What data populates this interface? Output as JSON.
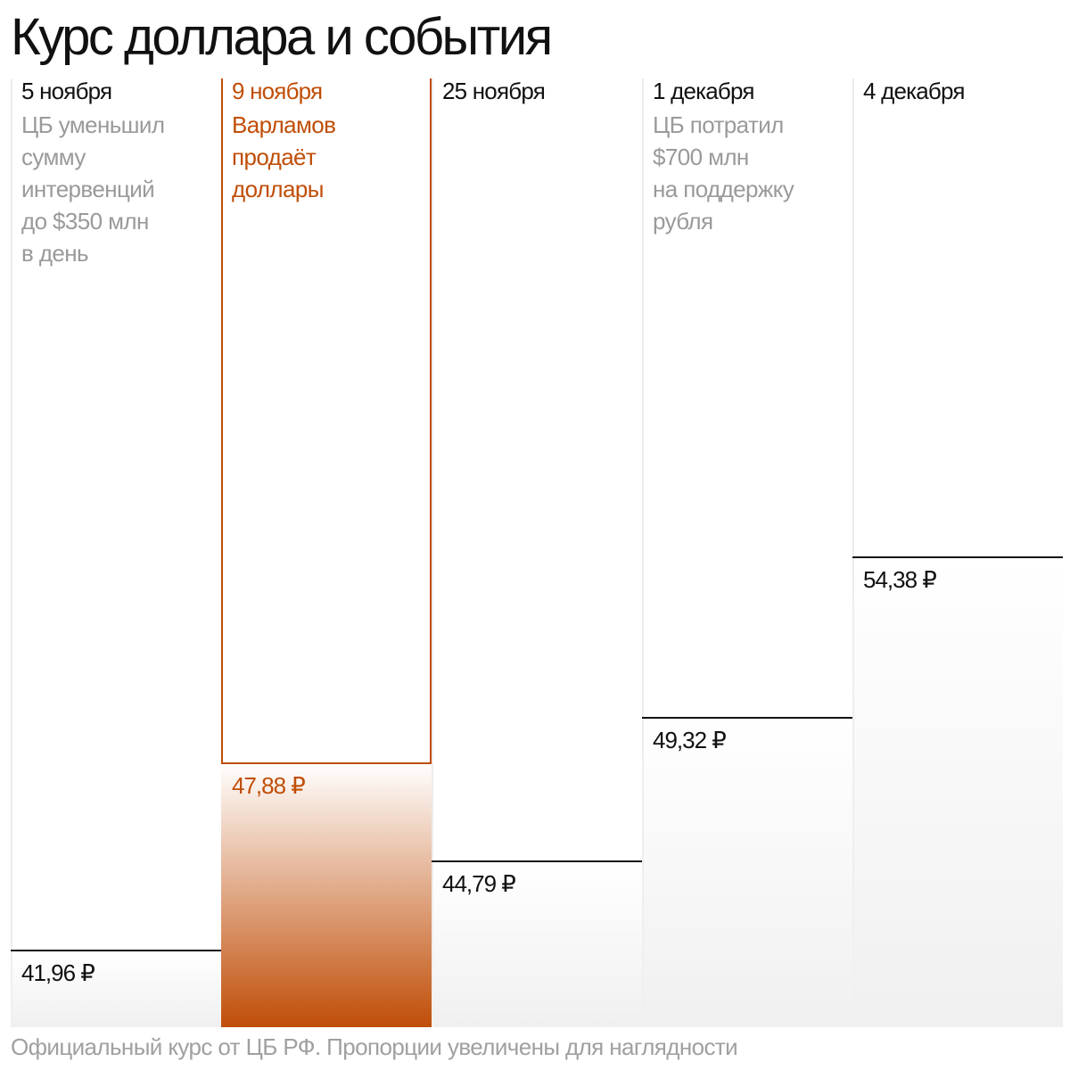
{
  "title": "Курс доллара и события",
  "footnote": "Официальный курс от ЦБ РФ. Пропорции увеличены для наглядности",
  "colors": {
    "text": "#111111",
    "muted": "#9a9a9a",
    "accent": "#c04e08",
    "line": "#111111",
    "column_border": "#ededed"
  },
  "chart_data": {
    "type": "bar",
    "title": "Курс доллара и события",
    "categories": [
      "5 ноября",
      "9 ноября",
      "25 ноября",
      "1 декабря",
      "4 декабря"
    ],
    "values": [
      41.96,
      47.88,
      44.79,
      49.32,
      54.38
    ],
    "value_labels": [
      "41,96 ₽",
      "47,88 ₽",
      "44,79 ₽",
      "49,32 ₽",
      "54,38 ₽"
    ],
    "events": [
      [
        "ЦБ уменьшил",
        "сумму",
        "интервенций",
        "до $350 млн",
        "в день"
      ],
      [
        "Варламов",
        "продаёт",
        "доллары"
      ],
      [],
      [
        "ЦБ потратил",
        "$700 млн",
        "на поддержку",
        "рубля"
      ],
      []
    ],
    "highlight_index": 1
  }
}
